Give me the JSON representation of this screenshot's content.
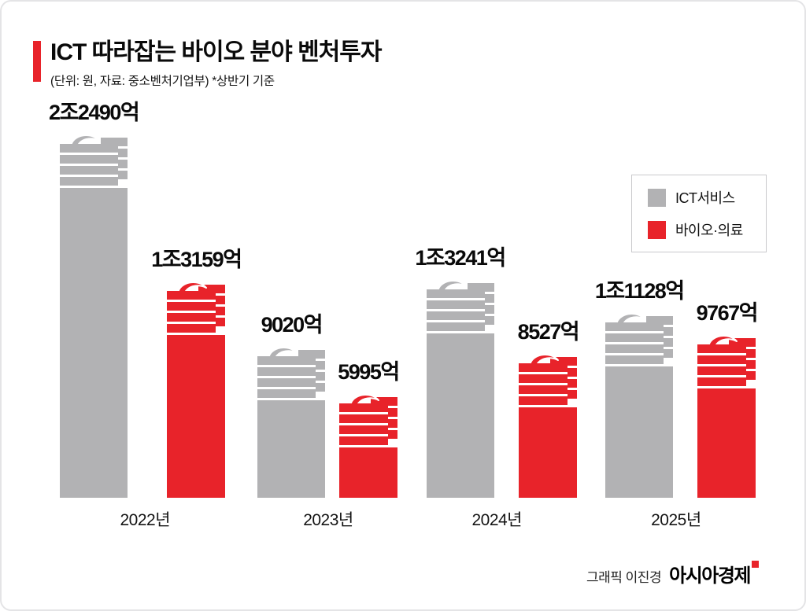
{
  "header": {
    "title": "ICT 따라잡는 바이오 분야 벤처투자",
    "subtitle": "(단위: 원, 자료: 중소벤처기업부)  *상반기 기준"
  },
  "colors": {
    "accent_red": "#e8232a",
    "bar_gray": "#b2b2b4",
    "bar_red": "#e8232a"
  },
  "legend": {
    "items": [
      {
        "label": "ICT서비스",
        "color": "#b2b2b4"
      },
      {
        "label": "바이오·의료",
        "color": "#e8232a"
      }
    ]
  },
  "chart_data": {
    "type": "bar",
    "title": "ICT 따라잡는 바이오 분야 벤처투자",
    "unit": "억 원",
    "note": "상반기 기준",
    "source": "중소벤처기업부",
    "categories": [
      "2022년",
      "2023년",
      "2024년",
      "2025년"
    ],
    "series": [
      {
        "name": "ICT서비스",
        "color": "#b2b2b4",
        "values": [
          22490,
          9020,
          13241,
          11128
        ],
        "value_labels": [
          "2조2490억",
          "9020억",
          "1조3241억",
          "1조1128억"
        ]
      },
      {
        "name": "바이오·의료",
        "color": "#e8232a",
        "values": [
          13159,
          5995,
          8527,
          9767
        ],
        "value_labels": [
          "1조3159억",
          "5995억",
          "8527억",
          "9767억"
        ]
      }
    ],
    "ylim": [
      0,
      23000
    ],
    "grid": false,
    "legend_position": "top-right"
  },
  "footer": {
    "credit": "그래픽 이진경",
    "brand": "아시아경제"
  }
}
